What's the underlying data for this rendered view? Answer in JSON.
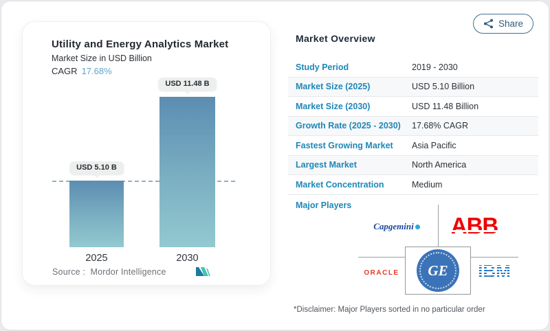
{
  "chart": {
    "title": "Utility and Energy Analytics Market",
    "subtitle": "Market Size in USD Billion",
    "cagr_label": "CAGR",
    "cagr_value": "17.68%",
    "source_prefix": "Source :",
    "source_name": "Mordor Intelligence"
  },
  "chart_data": {
    "type": "bar",
    "categories": [
      "2025",
      "2030"
    ],
    "values": [
      5.1,
      11.48
    ],
    "value_labels": [
      "USD 5.10 B",
      "USD 11.48 B"
    ],
    "title": "Utility and Energy Analytics Market",
    "ylabel": "Market Size in USD Billion",
    "unit": "USD Billion",
    "cagr": "17.68%",
    "baseline_dashed_at": 5.1,
    "grid": false,
    "legend": "none"
  },
  "overview": {
    "title": "Market Overview",
    "share_label": "Share",
    "rows": [
      {
        "label": "Study Period",
        "value": "2019 - 2030"
      },
      {
        "label": "Market Size (2025)",
        "value": "USD 5.10 Billion"
      },
      {
        "label": "Market Size (2030)",
        "value": "USD 11.48 Billion"
      },
      {
        "label": "Growth Rate (2025 - 2030)",
        "value": "17.68% CAGR"
      },
      {
        "label": "Fastest Growing Market",
        "value": "Asia Pacific"
      },
      {
        "label": "Largest Market",
        "value": "North America"
      },
      {
        "label": "Market Concentration",
        "value": "Medium"
      }
    ],
    "major_players_label": "Major Players",
    "players": [
      {
        "name": "capgemini",
        "label": "Capgemini"
      },
      {
        "name": "abb",
        "label": "ABB"
      },
      {
        "name": "oracle",
        "label": "ORACLE"
      },
      {
        "name": "ge",
        "label": "GE"
      },
      {
        "name": "ibm",
        "label": "IBM"
      }
    ],
    "disclaimer": "*Disclaimer: Major Players sorted in no particular order"
  },
  "colors": {
    "label_blue": "#1d87b8",
    "cagr_blue": "#61a5c9",
    "dash_blue": "#93aec2",
    "bar_top": "#5c8db2",
    "bar_bottom": "#93c9d0",
    "abb_red": "#ee0202",
    "oracle_red": "#e8392b",
    "ibm_blue": "#1f70c1",
    "ge_blue": "#3b73b8",
    "capgemini_blue": "#19469d"
  }
}
